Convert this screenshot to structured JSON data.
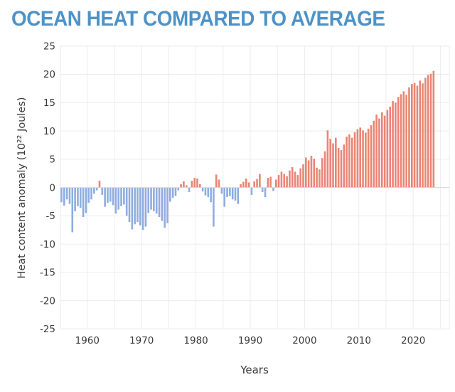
{
  "header": {
    "title": "OCEAN HEAT COMPARED TO AVERAGE"
  },
  "chart": {
    "y_axis_label": "Heat content anomaly (10²² Joules)",
    "x_axis_label": "Years",
    "y_ticks": [
      25,
      20,
      15,
      10,
      5,
      0,
      -5,
      -10,
      -15,
      -20,
      -25
    ],
    "x_ticks": [
      1960,
      1970,
      1980,
      1990,
      2000,
      2010,
      2020
    ],
    "colors": {
      "title": "#4d93c8",
      "positive_bar": "#ea8576",
      "negative_bar": "#8fade0",
      "grid": "#ececec",
      "axis_text": "#3b3b3b"
    }
  },
  "chart_data": {
    "type": "bar",
    "title": "OCEAN HEAT COMPARED TO AVERAGE",
    "xlabel": "Years",
    "ylabel": "Heat content anomaly (10²² Joules)",
    "ylim": [
      -25,
      25
    ],
    "xlim": [
      1955,
      2026.5
    ],
    "grid": true,
    "x_start": 1955,
    "x_step": 0.5,
    "series": [
      {
        "name": "Heat content anomaly vs average (10^22 J)",
        "values": [
          -2.6,
          -3.2,
          -2.1,
          -2.9,
          -7.9,
          -4.2,
          -3.3,
          -3.6,
          -5.2,
          -4.5,
          -2.7,
          -2.1,
          -1.1,
          -0.5,
          1.2,
          -1.3,
          -3.4,
          -2.7,
          -2.5,
          -3.1,
          -4.6,
          -3.9,
          -3.3,
          -3.0,
          -5.0,
          -6.1,
          -7.4,
          -6.5,
          -6.1,
          -6.7,
          -7.5,
          -6.9,
          -4.5,
          -3.9,
          -4.2,
          -4.6,
          -5.2,
          -5.9,
          -7.1,
          -6.3,
          -2.5,
          -1.8,
          -1.5,
          -0.5,
          0.6,
          1.1,
          0.4,
          -0.8,
          1.2,
          1.7,
          1.6,
          0.6,
          -0.7,
          -1.4,
          -1.7,
          -2.6,
          -6.9,
          2.3,
          1.4,
          -1.1,
          -3.4,
          -1.7,
          -1.5,
          -2.1,
          -2.3,
          -2.9,
          0.6,
          1.0,
          1.6,
          0.9,
          -1.3,
          1.1,
          1.5,
          2.4,
          -0.8,
          -1.7,
          1.7,
          1.9,
          -0.6,
          1.4,
          2.2,
          2.8,
          2.4,
          2.0,
          3.0,
          3.6,
          2.8,
          2.2,
          3.4,
          4.1,
          5.3,
          4.8,
          5.6,
          5.1,
          3.5,
          3.2,
          5.2,
          6.4,
          10.1,
          8.6,
          7.8,
          8.8,
          7.0,
          6.6,
          7.6,
          9.0,
          9.4,
          8.8,
          9.8,
          10.3,
          10.6,
          10.1,
          9.7,
          10.4,
          11.0,
          11.8,
          12.9,
          12.2,
          13.3,
          12.7,
          13.7,
          14.3,
          15.3,
          15.0,
          16.0,
          16.5,
          17.0,
          16.4,
          17.7,
          18.3,
          18.5,
          18.0,
          18.9,
          18.4,
          19.4,
          19.9,
          20.1,
          20.6
        ]
      }
    ]
  }
}
